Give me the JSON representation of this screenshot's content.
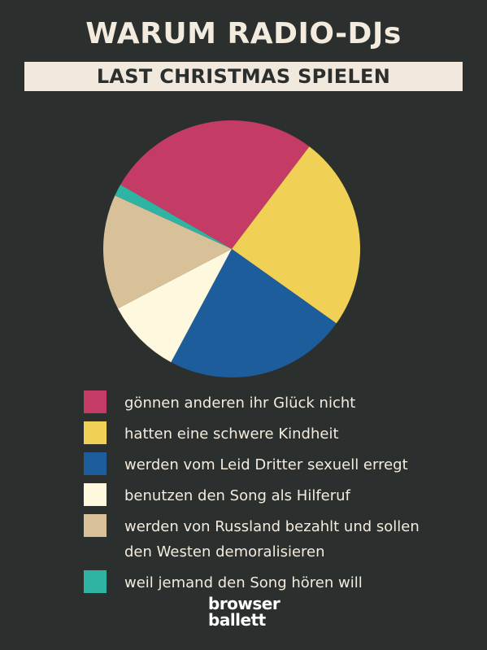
{
  "chart_data": {
    "type": "pie",
    "title": "WARUM RADIO-DJs",
    "subtitle": "LAST CHRISTMAS SPIELEN",
    "slices": [
      {
        "label": "gönnen anderen ihr Glück nicht",
        "value": 27,
        "color": "#c43b66"
      },
      {
        "label": "hatten eine schwere Kindheit",
        "value": 24.5,
        "color": "#f0d055"
      },
      {
        "label": "werden vom Leid Dritter sexuell erregt",
        "value": 23,
        "color": "#1d5d9b"
      },
      {
        "label": "benutzen den Song als Hilferuf",
        "value": 9.5,
        "color": "#fdf8de"
      },
      {
        "label": "werden von Russland bezahlt und sollen den Westen demoralisieren",
        "value": 14.5,
        "color": "#d8c198"
      },
      {
        "label": "weil jemand den Song hören will",
        "value": 1.5,
        "color": "#2fb3a3"
      }
    ]
  },
  "legend": [
    {
      "text": "gönnen anderen ihr Glück nicht",
      "color": "#c43b66"
    },
    {
      "text": "hatten eine schwere Kindheit",
      "color": "#f0d055"
    },
    {
      "text": "werden vom Leid Dritter sexuell erregt",
      "color": "#1d5d9b"
    },
    {
      "text": "benutzen den Song als Hilferuf",
      "color": "#fdf8de"
    },
    {
      "text": "werden von Russland bezahlt und sollen",
      "color": "#d8c198"
    },
    {
      "text": "den Westen demoralisieren",
      "color": null
    },
    {
      "text": "weil jemand den Song hören will",
      "color": "#2fb3a3"
    }
  ],
  "logo": {
    "line1": "browser",
    "line2": "ballett"
  },
  "colors": {
    "background": "#2b302f",
    "text": "#f3ebdd",
    "subtitle_bar": "#f1e8de"
  }
}
